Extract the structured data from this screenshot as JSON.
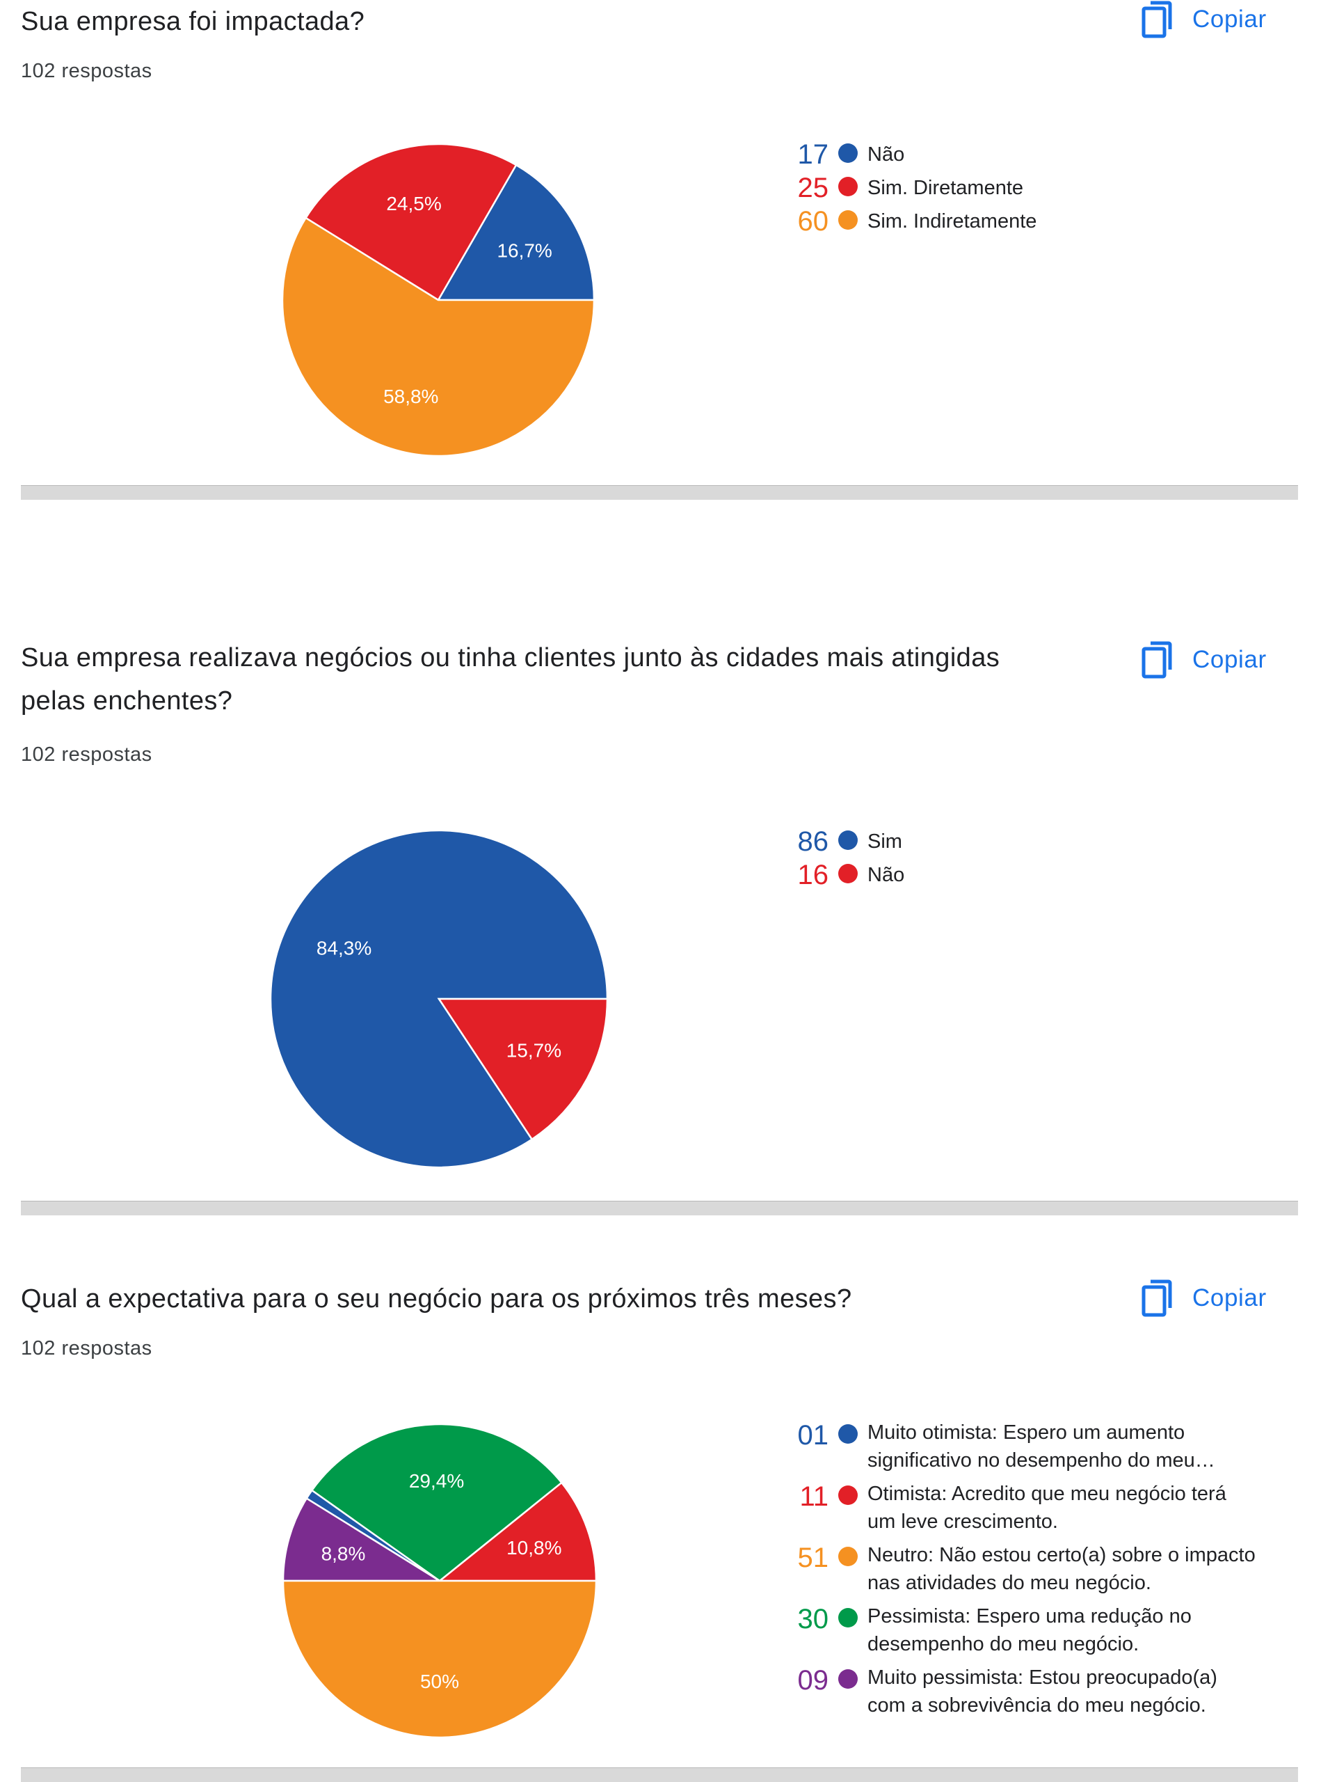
{
  "copy_label": "Copiar",
  "chart_data": [
    {
      "type": "pie",
      "title": "Sua empresa foi impactada?",
      "responses": "102 respostas",
      "slices": [
        {
          "count": "17",
          "label": "Não",
          "value": 17,
          "pct_label": "16,7%",
          "color": "#1f58a8"
        },
        {
          "count": "25",
          "label": "Sim. Diretamente",
          "value": 25,
          "pct_label": "24,5%",
          "color": "#e22027"
        },
        {
          "count": "60",
          "label": "Sim. Indiretamente",
          "value": 60,
          "pct_label": "58,8%",
          "color": "#f59121"
        }
      ]
    },
    {
      "type": "pie",
      "title": "Sua empresa realizava negócios ou tinha clientes junto às cidades mais atingidas pelas enchentes?",
      "responses": "102 respostas",
      "slices": [
        {
          "count": "86",
          "label": "Sim",
          "value": 86,
          "pct_label": "84,3%",
          "color": "#1f58a8"
        },
        {
          "count": "16",
          "label": "Não",
          "value": 16,
          "pct_label": "15,7%",
          "color": "#e22027"
        }
      ]
    },
    {
      "type": "pie",
      "title": "Qual a expectativa para o seu negócio para os próximos três meses?",
      "responses": "102 respostas",
      "slices": [
        {
          "count": "01",
          "label": "Muito otimista: Espero um aumento significativo no desempenho do meu…",
          "value": 1,
          "pct_label": "",
          "color": "#1f58a8"
        },
        {
          "count": "11",
          "label": "Otimista: Acredito que meu negócio terá um leve crescimento.",
          "value": 11,
          "pct_label": "10,8%",
          "color": "#e22027"
        },
        {
          "count": "51",
          "label": "Neutro: Não estou certo(a) sobre o impacto nas atividades do meu negócio.",
          "value": 51,
          "pct_label": "50%",
          "color": "#f59121"
        },
        {
          "count": "30",
          "label": "Pessimista: Espero uma redução no desempenho do meu negócio.",
          "value": 30,
          "pct_label": "29,4%",
          "color": "#009a4a"
        },
        {
          "count": "09",
          "label": "Muito pessimista: Estou preocupado(a) com a sobrevivência do meu negócio.",
          "value": 9,
          "pct_label": "8,8%",
          "color": "#7b2c8f"
        }
      ]
    }
  ]
}
